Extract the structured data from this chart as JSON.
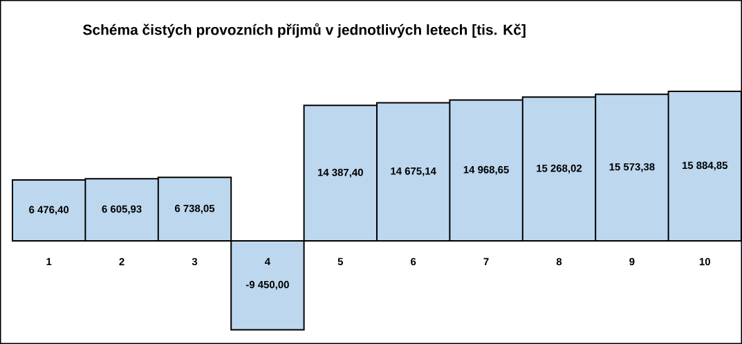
{
  "chart_data": {
    "type": "bar",
    "title": "Schéma čistých provozních příjmů v jednotlivých letech [tis. Kč]",
    "categories": [
      "1",
      "2",
      "3",
      "4",
      "5",
      "6",
      "7",
      "8",
      "9",
      "10"
    ],
    "values": [
      6476.4,
      6605.93,
      6738.05,
      -9450.0,
      14387.4,
      14675.14,
      14968.65,
      15268.02,
      15573.38,
      15884.85
    ],
    "value_labels": [
      "6 476,40",
      "6 605,93",
      "6 738,05",
      "-9 450,00",
      "14 387,40",
      "14 675,14",
      "14 968,65",
      "15 268,02",
      "15 573,38",
      "15 884,85"
    ],
    "color": "#bdd7ee"
  }
}
